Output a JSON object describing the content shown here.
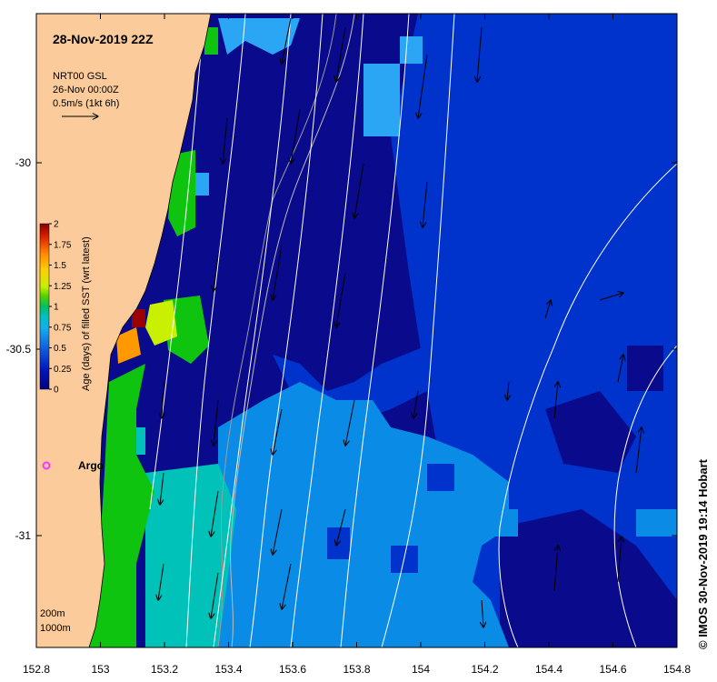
{
  "title": "28-Nov-2019 22Z",
  "current_info": {
    "line1": "NRT00 GSL",
    "line2": "26-Nov 00:00Z",
    "scale_label": "0.5m/s (1kt 6h)"
  },
  "colorbar": {
    "label": "Age (days) of filled SST (wrt latest)",
    "ticks": [
      "2",
      "1.75",
      "1.5",
      "1.25",
      "1",
      "0.75",
      "0.5",
      "0.25",
      "0"
    ],
    "colors": [
      "#7f0000",
      "#e02000",
      "#ff8800",
      "#ffd000",
      "#c8f000",
      "#50d000",
      "#00c060",
      "#00c0c0",
      "#10a8f0",
      "#1060e0",
      "#0018a0",
      "#000080"
    ]
  },
  "float_marker": {
    "label": "Argo",
    "color": "#ff33ff"
  },
  "depth_legend": {
    "contour1": "200m",
    "contour2": "1000m"
  },
  "copyright": "© IMOS 30-Nov-2019 19:14 Hobart",
  "map_data": {
    "lon_range": [
      152.8,
      154.8
    ],
    "lat_range": [
      -31.3,
      -29.6
    ],
    "x_ticks": [
      "152.8",
      "153",
      "153.2",
      "153.4",
      "153.6",
      "153.8",
      "154",
      "154.2",
      "154.4",
      "154.6",
      "154.8"
    ],
    "y_ticks": [
      "-30",
      "-30.5",
      "-31"
    ],
    "land_color": "#fbcb9b",
    "age_colors": {
      "deep": "#0a0a8c",
      "mid": "#0033cc",
      "light": "#0a8ce6",
      "sky": "#2aa6f4",
      "teal": "#00c2b8",
      "green": "#0fc40f",
      "lime": "#c8f000",
      "orange": "#ff9900",
      "darkred": "#9b0000"
    }
  }
}
